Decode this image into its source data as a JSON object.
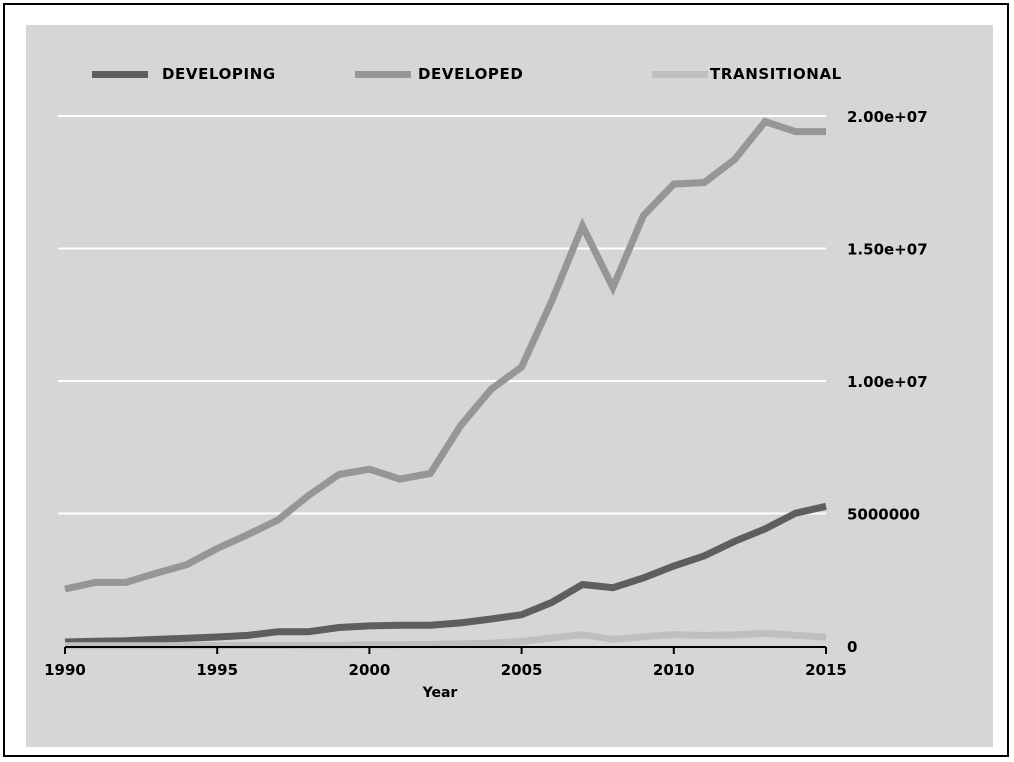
{
  "chart_data": {
    "type": "line",
    "title": "",
    "xlabel": "Year",
    "ylabel": "",
    "x": [
      1990,
      1991,
      1992,
      1993,
      1994,
      1995,
      1996,
      1997,
      1998,
      1999,
      2000,
      2001,
      2002,
      2003,
      2004,
      2005,
      2006,
      2007,
      2008,
      2009,
      2010,
      2011,
      2012,
      2013,
      2014,
      2015
    ],
    "xlim": [
      1990,
      2015
    ],
    "ylim": [
      0,
      20000000
    ],
    "x_ticks": [
      {
        "value": 1990,
        "label": "1990"
      },
      {
        "value": 1995,
        "label": "1995"
      },
      {
        "value": 2000,
        "label": "2000"
      },
      {
        "value": 2005,
        "label": "2005"
      },
      {
        "value": 2010,
        "label": "2010"
      },
      {
        "value": 2015,
        "label": "2015"
      }
    ],
    "y_ticks": [
      {
        "value": 0,
        "label": "0"
      },
      {
        "value": 5000000,
        "label": "5000000"
      },
      {
        "value": 10000000,
        "label": "1.00e+07"
      },
      {
        "value": 15000000,
        "label": "1.50e+07"
      },
      {
        "value": 20000000,
        "label": "2.00e+07"
      }
    ],
    "grid": true,
    "legend_position": "top",
    "y_axis_side": "right",
    "series": [
      {
        "name": "DEVELOPING",
        "color": "#5e5e5e",
        "values": [
          150000,
          180000,
          200000,
          250000,
          290000,
          340000,
          400000,
          540000,
          540000,
          700000,
          760000,
          780000,
          780000,
          870000,
          1020000,
          1180000,
          1650000,
          2320000,
          2200000,
          2570000,
          3020000,
          3400000,
          3950000,
          4420000,
          5010000,
          5270000
        ]
      },
      {
        "name": "DEVELOPED",
        "color": "#969696",
        "values": [
          2150000,
          2400000,
          2400000,
          2750000,
          3070000,
          3680000,
          4200000,
          4760000,
          5680000,
          6470000,
          6670000,
          6300000,
          6510000,
          8320000,
          9690000,
          10530000,
          13040000,
          15850000,
          13530000,
          16240000,
          17430000,
          17490000,
          18360000,
          19790000,
          19410000,
          19410000
        ]
      },
      {
        "name": "TRANSITIONAL",
        "color": "#bfbfbf",
        "values": [
          10000,
          10000,
          10000,
          10000,
          10000,
          15000,
          20000,
          20000,
          25000,
          30000,
          40000,
          50000,
          60000,
          80000,
          110000,
          170000,
          300000,
          430000,
          250000,
          350000,
          430000,
          400000,
          420000,
          480000,
          400000,
          340000
        ]
      }
    ]
  }
}
